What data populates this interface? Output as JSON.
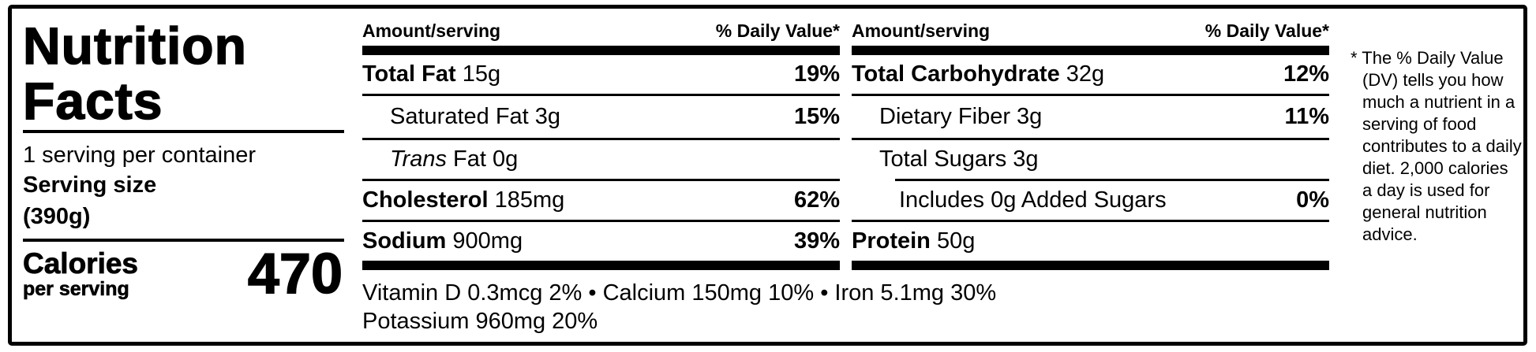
{
  "title": "Nutrition Facts",
  "left": {
    "servings_per_container": "1 serving per container",
    "serving_size_label": "Serving size",
    "serving_size_value": "(390g)",
    "calories_label": "Calories",
    "calories_sublabel": "per serving",
    "calories_value": "470"
  },
  "columns": [
    {
      "header_amount": "Amount/serving",
      "header_dv": "% Daily Value*",
      "rows": [
        {
          "bold": "Total Fat",
          "rest": " 15g",
          "dv": "19%"
        },
        {
          "rest": "Saturated Fat 3g",
          "dv": "15%"
        },
        {
          "italic": "Trans",
          "rest": " Fat 0g",
          "dv": ""
        },
        {
          "bold": "Cholesterol",
          "rest": " 185mg",
          "dv": "62%"
        },
        {
          "bold": "Sodium",
          "rest": " 900mg",
          "dv": "39%"
        }
      ]
    },
    {
      "header_amount": "Amount/serving",
      "header_dv": "% Daily Value*",
      "rows": [
        {
          "bold": "Total Carbohydrate",
          "rest": " 32g",
          "dv": "12%"
        },
        {
          "rest": "Dietary Fiber 3g",
          "dv": "11%"
        },
        {
          "rest": "Total Sugars 3g",
          "dv": ""
        },
        {
          "rest": "Includes 0g Added Sugars",
          "dv": "0%"
        },
        {
          "bold": "Protein",
          "rest": " 50g",
          "dv": ""
        }
      ]
    }
  ],
  "micronutrients": {
    "line1": "Vitamin D 0.3mcg 2% • Calcium 150mg 10% • Iron 5.1mg 30%",
    "line2": "Potassium 960mg 20%"
  },
  "footnote": {
    "marker": "*",
    "text": "The % Daily Value (DV) tells you how much a nutrient in a serving of food contributes to a daily diet. 2,000 calories a day is used for general nutrition advice."
  },
  "colors": {
    "foreground": "#000000",
    "background": "#ffffff"
  }
}
